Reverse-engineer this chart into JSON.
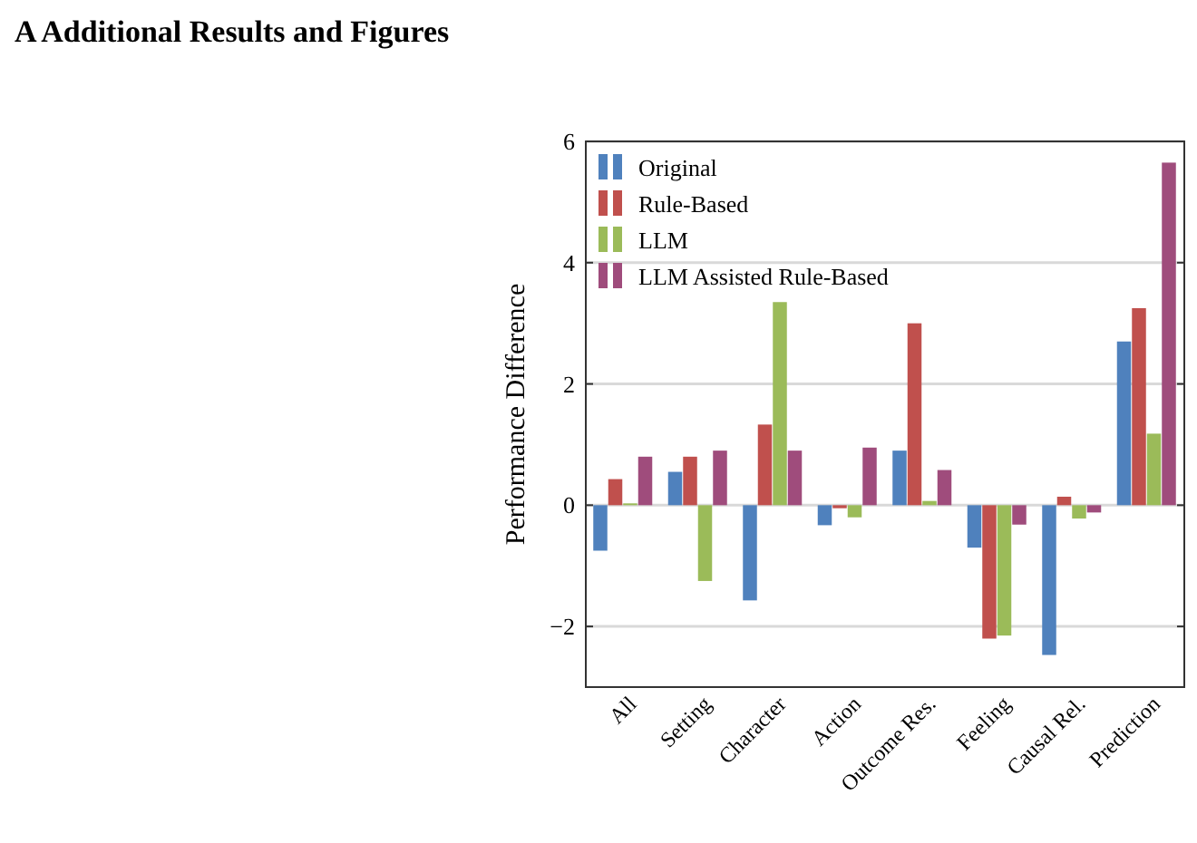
{
  "chart_data": {
    "type": "bar",
    "title": "A    Additional Results and Figures",
    "ylabel": "Performance Difference",
    "categories": [
      "All",
      "Setting",
      "Character",
      "Action",
      "Outcome Res.",
      "Feeling",
      "Causal Rel.",
      "Prediction"
    ],
    "series": [
      {
        "name": "Original",
        "color": "#4f81bd",
        "values": [
          -0.75,
          0.55,
          -1.57,
          -0.33,
          0.9,
          -0.7,
          -2.47,
          2.7
        ]
      },
      {
        "name": "Rule-Based",
        "color": "#c0504d",
        "values": [
          0.43,
          0.8,
          1.33,
          -0.05,
          3.0,
          -2.2,
          0.14,
          3.25
        ]
      },
      {
        "name": "LLM",
        "color": "#9bbb59",
        "values": [
          0.03,
          -1.25,
          3.35,
          -0.2,
          0.07,
          -2.15,
          -0.22,
          1.18
        ]
      },
      {
        "name": "LLM Assisted Rule-Based",
        "color": "#9f4c7c",
        "values": [
          0.8,
          0.9,
          0.9,
          0.95,
          0.58,
          -0.32,
          -0.12,
          5.65
        ]
      }
    ],
    "ylim": [
      -3,
      6
    ],
    "yticks": [
      {
        "value": -2,
        "label": "−2"
      },
      0,
      2,
      4,
      6
    ],
    "grid": "y",
    "legend": "top left"
  }
}
